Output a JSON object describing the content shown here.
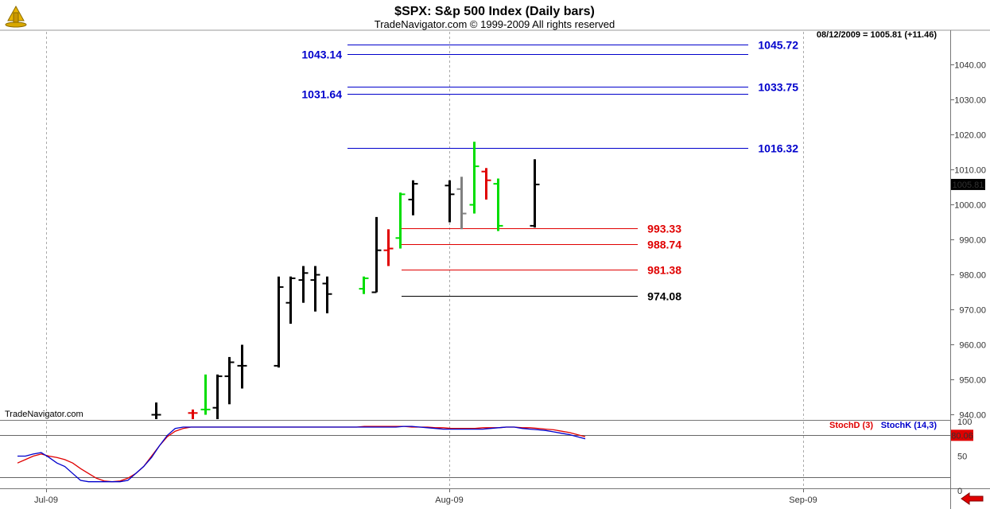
{
  "header": {
    "title": "$SPX:  S&p 500 Index  (Daily bars)",
    "copyright": "TradeNavigator.com © 1999-2009 All rights reserved",
    "status": "08/12/2009 = 1005.81 (+11.46)",
    "watermark": "TradeNavigator.com"
  },
  "colors": {
    "up": "#00dd00",
    "down": "#e00000",
    "neutral": "#000000",
    "grey": "#808080",
    "fib_blue": "#0000cc",
    "fib_red": "#e00000",
    "stoch_d": "#e00000",
    "stoch_k": "#0000cc"
  },
  "chart_data": [
    {
      "type": "ohlc",
      "title": "$SPX:  S&p 500 Index  (Daily bars)",
      "ylim": [
        936,
        1048
      ],
      "y_ticks": [
        "940.00",
        "950.00",
        "960.00",
        "970.00",
        "980.00",
        "990.00",
        "1000.00",
        "1010.00",
        "1020.00",
        "1030.00",
        "1040.00"
      ],
      "y_tick_values": [
        940,
        950,
        960,
        970,
        980,
        990,
        1000,
        1010,
        1020,
        1030,
        1040
      ],
      "x_labels": [
        "Jul-09",
        "Aug-09",
        "Sep-09"
      ],
      "last_price": "1005.81",
      "bars": [
        {
          "date": "2009-07-10",
          "open": 940,
          "high": 943.5,
          "low": 936,
          "close": 940,
          "color": "neutral"
        },
        {
          "date": "2009-07-13",
          "open": 940.5,
          "high": 941.5,
          "low": 936,
          "close": 940.5,
          "color": "down"
        },
        {
          "date": "2009-07-14",
          "open": 941.5,
          "high": 951.5,
          "low": 940,
          "close": 941.5,
          "color": "up"
        },
        {
          "date": "2009-07-15",
          "open": 942,
          "high": 951.5,
          "low": 936,
          "close": 951,
          "color": "neutral"
        },
        {
          "date": "2009-07-16",
          "open": 951,
          "high": 956.5,
          "low": 943,
          "close": 955,
          "color": "neutral"
        },
        {
          "date": "2009-07-17",
          "open": 954,
          "high": 960,
          "low": 947.5,
          "close": 954,
          "color": "neutral"
        },
        {
          "date": "2009-07-20",
          "open": 954,
          "high": 979.5,
          "low": 953.5,
          "close": 976.5,
          "color": "neutral"
        },
        {
          "date": "2009-07-21",
          "open": 972,
          "high": 979.5,
          "low": 966,
          "close": 979,
          "color": "neutral"
        },
        {
          "date": "2009-07-22",
          "open": 978.5,
          "high": 982.5,
          "low": 972,
          "close": 980.5,
          "color": "neutral"
        },
        {
          "date": "2009-07-23",
          "open": 978.5,
          "high": 982.5,
          "low": 969.5,
          "close": 980,
          "color": "neutral"
        },
        {
          "date": "2009-07-24",
          "open": 977.5,
          "high": 979.5,
          "low": 969,
          "close": 974.5,
          "color": "neutral"
        },
        {
          "date": "2009-07-27",
          "open": 976,
          "high": 979.5,
          "low": 974.5,
          "close": 979,
          "color": "up"
        },
        {
          "date": "2009-07-28",
          "open": 975,
          "high": 996.5,
          "low": 975,
          "close": 987,
          "color": "neutral"
        },
        {
          "date": "2009-07-29",
          "open": 987,
          "high": 993,
          "low": 982.5,
          "close": 987.5,
          "color": "down"
        },
        {
          "date": "2009-07-30",
          "open": 990.5,
          "high": 1003.5,
          "low": 987.5,
          "close": 1003,
          "color": "up"
        },
        {
          "date": "2009-07-31",
          "open": 1001.5,
          "high": 1007,
          "low": 997,
          "close": 1006,
          "color": "neutral"
        },
        {
          "date": "2009-08-03",
          "open": 1005.5,
          "high": 1007,
          "low": 995,
          "close": 1003,
          "color": "neutral"
        },
        {
          "date": "2009-08-04",
          "open": 1004.5,
          "high": 1008,
          "low": 993,
          "close": 997.5,
          "color": "grey"
        },
        {
          "date": "2009-08-05",
          "open": 1000,
          "high": 1018,
          "low": 997.5,
          "close": 1011,
          "color": "up"
        },
        {
          "date": "2009-08-06",
          "open": 1009.5,
          "high": 1010.5,
          "low": 1001.5,
          "close": 1007,
          "color": "down"
        },
        {
          "date": "2009-08-07",
          "open": 1006,
          "high": 1007.5,
          "low": 992.5,
          "close": 994,
          "color": "up"
        },
        {
          "date": "2009-08-10",
          "open": 994,
          "high": 1013,
          "low": 993.5,
          "close": 1005.81,
          "color": "neutral"
        }
      ],
      "levels": [
        {
          "value": 1045.72,
          "label": "1045.72",
          "label_side": "right",
          "color": "blue"
        },
        {
          "value": 1043.14,
          "label": "1043.14",
          "label_side": "left",
          "color": "blue"
        },
        {
          "value": 1033.75,
          "label": "1033.75",
          "label_side": "right",
          "color": "blue"
        },
        {
          "value": 1031.64,
          "label": "1031.64",
          "label_side": "left",
          "color": "blue"
        },
        {
          "value": 1016.32,
          "label": "1016.32",
          "label_side": "right",
          "color": "blue"
        },
        {
          "value": 993.33,
          "label": "993.33",
          "label_side": "right",
          "color": "red"
        },
        {
          "value": 988.74,
          "label": "988.74",
          "label_side": "right",
          "color": "red"
        },
        {
          "value": 981.38,
          "label": "981.38",
          "label_side": "right",
          "color": "red"
        },
        {
          "value": 974.08,
          "label": "974.08",
          "label_side": "right",
          "color": "black"
        }
      ]
    },
    {
      "type": "line",
      "legend": [
        "StochD (3)",
        "StochK (14,3)"
      ],
      "ylim": [
        0,
        100
      ],
      "y_ticks": [
        "0",
        "50",
        "100"
      ],
      "y_tick_values": [
        0,
        50,
        100
      ],
      "hlines": [
        80,
        20
      ],
      "last_value": "80.06",
      "series": [
        {
          "name": "StochD (3)",
          "color": "red",
          "values": [
            40,
            45,
            50,
            53,
            50,
            48,
            45,
            40,
            32,
            25,
            18,
            14,
            13,
            14,
            18,
            25,
            35,
            50,
            65,
            78,
            86,
            90,
            92,
            92,
            92,
            92,
            92,
            92,
            92,
            92,
            92,
            92,
            92,
            92,
            92,
            92,
            92,
            92,
            92,
            92,
            92,
            92,
            92,
            92,
            93,
            93,
            93,
            93,
            93,
            93,
            92,
            92,
            92,
            91,
            91,
            90,
            90,
            90,
            90,
            91,
            91,
            91,
            92,
            92,
            91,
            91,
            90,
            89,
            88,
            86,
            84,
            81,
            78
          ]
        },
        {
          "name": "StochK (14,3)",
          "color": "blue",
          "values": [
            50,
            50,
            53,
            55,
            48,
            40,
            35,
            25,
            15,
            13,
            13,
            13,
            13,
            13,
            15,
            25,
            35,
            48,
            65,
            80,
            90,
            92,
            92,
            92,
            92,
            92,
            92,
            92,
            92,
            92,
            92,
            92,
            92,
            92,
            92,
            92,
            92,
            92,
            92,
            92,
            92,
            92,
            92,
            92,
            92,
            92,
            92,
            92,
            92,
            93,
            93,
            92,
            91,
            90,
            89,
            89,
            89,
            89,
            89,
            89,
            90,
            91,
            92,
            92,
            90,
            89,
            88,
            87,
            85,
            83,
            81,
            78,
            75
          ]
        }
      ]
    }
  ]
}
